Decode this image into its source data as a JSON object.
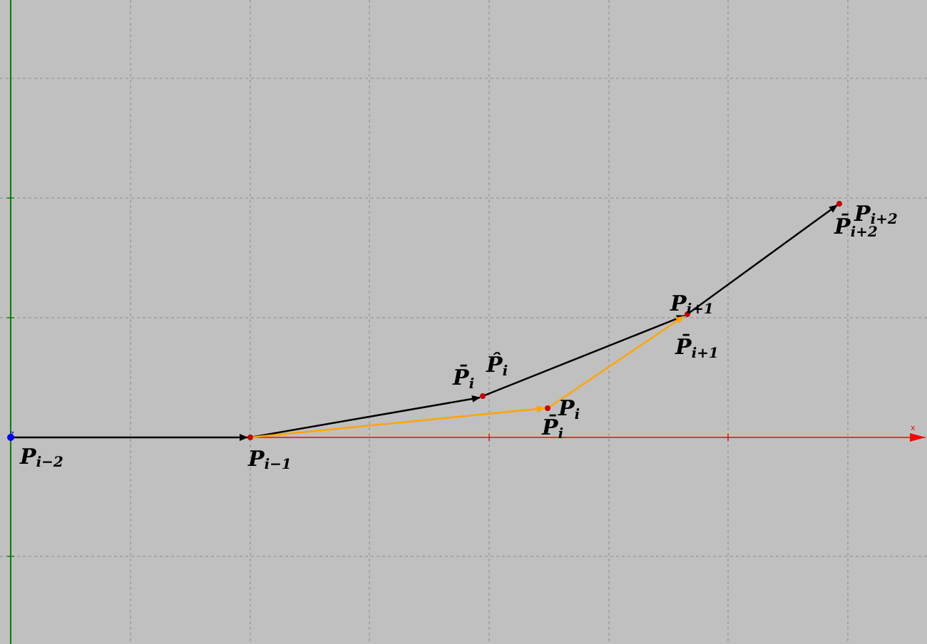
{
  "colors": {
    "background": "#c0c0c0",
    "grid": "#8a8a8a",
    "x_axis": "#ff0000",
    "y_axis": "#008000",
    "origin_point": "#0000ff",
    "point": "#cc0000",
    "black_vector": "#000000",
    "orange_vector": "#ffa500"
  },
  "axes": {
    "x_label": "x",
    "z_label": "z"
  },
  "labels": {
    "p_im2": {
      "base": "P",
      "sub": "i−2"
    },
    "p_im1": {
      "base": "P",
      "sub": "i−1"
    },
    "pbar_i_top": {
      "base": "P̄",
      "sub": "i"
    },
    "phat_i": {
      "base": "P̂",
      "sub": "i"
    },
    "p_i": {
      "base": "P",
      "sub": "i"
    },
    "pbar_i_bottom": {
      "base": "P̄",
      "sub": "i"
    },
    "p_ip1": {
      "base": "P",
      "sub": "i+1"
    },
    "pbar_ip1": {
      "base": "P̄",
      "sub": "i+1"
    },
    "p_ip2": {
      "base": "P",
      "sub": "i+2"
    },
    "pbar_ip2": {
      "base": "P̄",
      "sub": "i+2"
    }
  }
}
